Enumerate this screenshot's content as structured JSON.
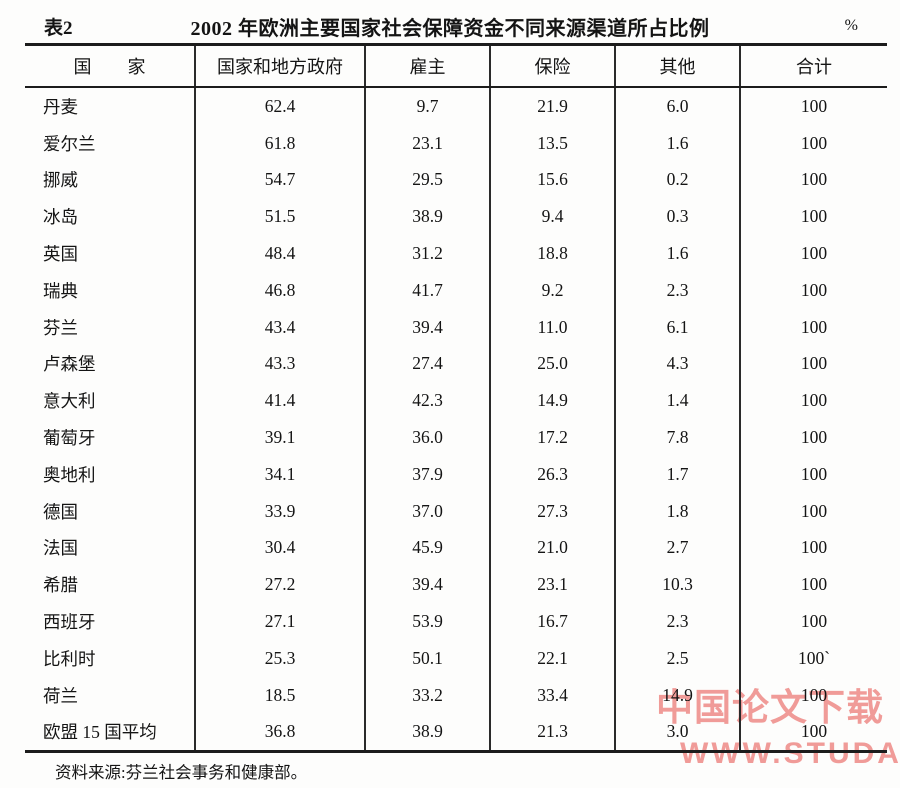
{
  "page": {
    "table_label": "表2",
    "title": "2002 年欧洲主要国家社会保障资金不同来源渠道所占比例",
    "unit": "%",
    "source_note": "资料来源:芬兰社会事务和健康部。"
  },
  "watermark": {
    "line1": "中国论文下载",
    "line2": "WWW.STUDA.",
    "color": "#ee8b87"
  },
  "chart_data": {
    "type": "table",
    "title": "2002 年欧洲主要国家社会保障资金不同来源渠道所占比例",
    "unit": "%",
    "columns": [
      "国　　家",
      "国家和地方政府",
      "雇主",
      "保险",
      "其他",
      "合计"
    ],
    "rows": [
      [
        "丹麦",
        "62.4",
        "9.7",
        "21.9",
        "6.0",
        "100"
      ],
      [
        "爱尔兰",
        "61.8",
        "23.1",
        "13.5",
        "1.6",
        "100"
      ],
      [
        "挪威",
        "54.7",
        "29.5",
        "15.6",
        "0.2",
        "100"
      ],
      [
        "冰岛",
        "51.5",
        "38.9",
        "9.4",
        "0.3",
        "100"
      ],
      [
        "英国",
        "48.4",
        "31.2",
        "18.8",
        "1.6",
        "100"
      ],
      [
        "瑞典",
        "46.8",
        "41.7",
        "9.2",
        "2.3",
        "100"
      ],
      [
        "芬兰",
        "43.4",
        "39.4",
        "11.0",
        "6.1",
        "100"
      ],
      [
        "卢森堡",
        "43.3",
        "27.4",
        "25.0",
        "4.3",
        "100"
      ],
      [
        "意大利",
        "41.4",
        "42.3",
        "14.9",
        "1.4",
        "100"
      ],
      [
        "葡萄牙",
        "39.1",
        "36.0",
        "17.2",
        "7.8",
        "100"
      ],
      [
        "奥地利",
        "34.1",
        "37.9",
        "26.3",
        "1.7",
        "100"
      ],
      [
        "德国",
        "33.9",
        "37.0",
        "27.3",
        "1.8",
        "100"
      ],
      [
        "法国",
        "30.4",
        "45.9",
        "21.0",
        "2.7",
        "100"
      ],
      [
        "希腊",
        "27.2",
        "39.4",
        "23.1",
        "10.3",
        "100"
      ],
      [
        "西班牙",
        "27.1",
        "53.9",
        "16.7",
        "2.3",
        "100"
      ],
      [
        "比利时",
        "25.3",
        "50.1",
        "22.1",
        "2.5",
        "100`"
      ],
      [
        "荷兰",
        "18.5",
        "33.2",
        "33.4",
        "14.9",
        "100"
      ],
      [
        "欧盟 15 国平均",
        "36.8",
        "38.9",
        "21.3",
        "3.0",
        "100"
      ]
    ]
  }
}
